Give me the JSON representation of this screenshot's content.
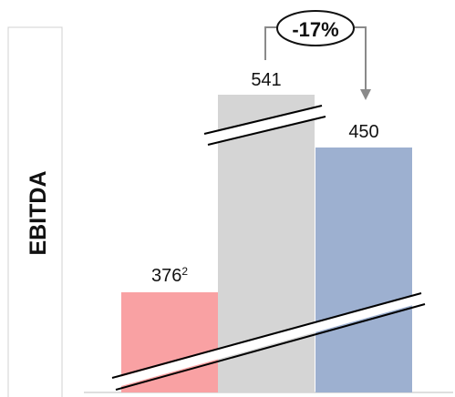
{
  "chart_data": {
    "type": "bar",
    "ylabel": "EBITDA",
    "values": [
      376,
      541,
      450
    ],
    "value_labels": [
      "376",
      "541",
      "450"
    ],
    "value_superscripts": [
      "2",
      "",
      ""
    ],
    "colors": [
      "#F9A1A3",
      "#D5D5D5",
      "#9DB0D0"
    ],
    "axis_break": true,
    "change_annotation": {
      "label": "-17%",
      "from_index": 1,
      "to_index": 2
    }
  }
}
